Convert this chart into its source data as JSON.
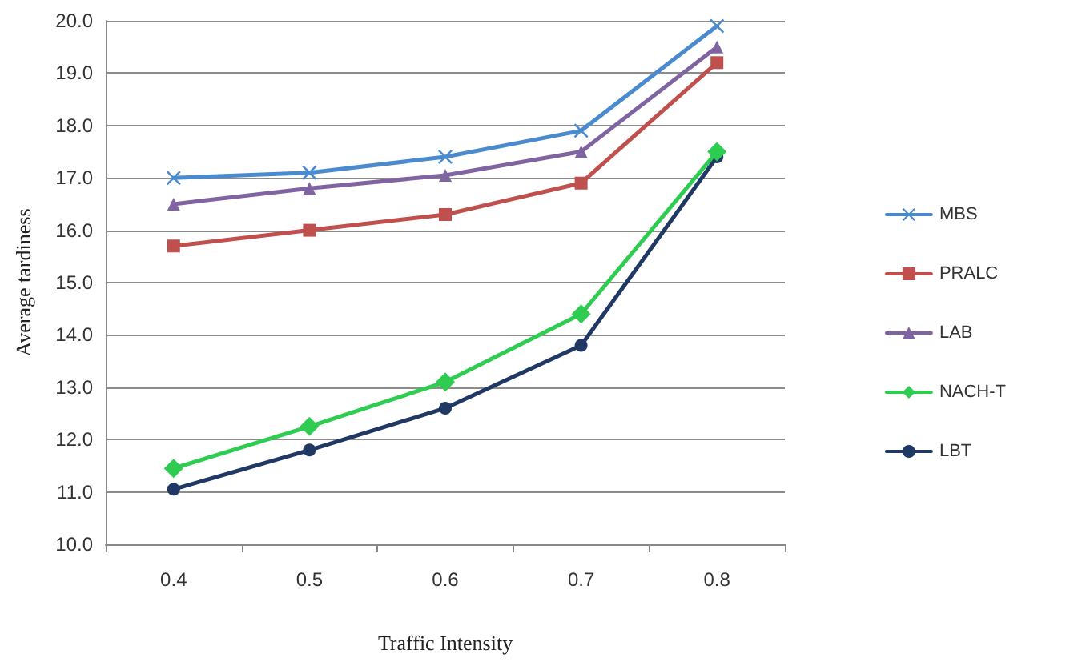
{
  "chart_data": {
    "type": "line",
    "xlabel": "Traffic Intensity",
    "ylabel": "Average tardiness",
    "categories": [
      "0.4",
      "0.5",
      "0.6",
      "0.7",
      "0.8"
    ],
    "series": [
      {
        "name": "MBS",
        "color": "#4a8bd0",
        "marker": "cross",
        "values": [
          17.0,
          17.1,
          17.4,
          17.9,
          19.9
        ]
      },
      {
        "name": "PRALC",
        "color": "#c0504d",
        "marker": "square",
        "values": [
          15.7,
          16.0,
          16.3,
          16.9,
          19.2
        ]
      },
      {
        "name": "LAB",
        "color": "#8064a2",
        "marker": "triangle",
        "values": [
          16.5,
          16.8,
          17.05,
          17.5,
          19.5
        ]
      },
      {
        "name": "NACH-T",
        "color": "#2ecc50",
        "marker": "diamond",
        "values": [
          11.45,
          12.25,
          13.1,
          14.4,
          17.5
        ]
      },
      {
        "name": "LBT",
        "color": "#1f3864",
        "marker": "circle",
        "values": [
          11.05,
          11.8,
          12.6,
          13.8,
          17.4
        ]
      }
    ],
    "ylim": [
      10,
      20
    ],
    "yticks": [
      {
        "value": 10,
        "label": "10.0"
      },
      {
        "value": 11,
        "label": "11.0"
      },
      {
        "value": 12,
        "label": "12.0"
      },
      {
        "value": 13,
        "label": "13.0"
      },
      {
        "value": 14,
        "label": "14.0"
      },
      {
        "value": 15,
        "label": "15.0"
      },
      {
        "value": 16,
        "label": "16.0"
      },
      {
        "value": 17,
        "label": "17.0"
      },
      {
        "value": 18,
        "label": "18.0"
      },
      {
        "value": 19,
        "label": "19.0"
      },
      {
        "value": 20,
        "label": "20.0"
      }
    ],
    "grid": "y",
    "legend": "right",
    "line_style": "solid"
  }
}
